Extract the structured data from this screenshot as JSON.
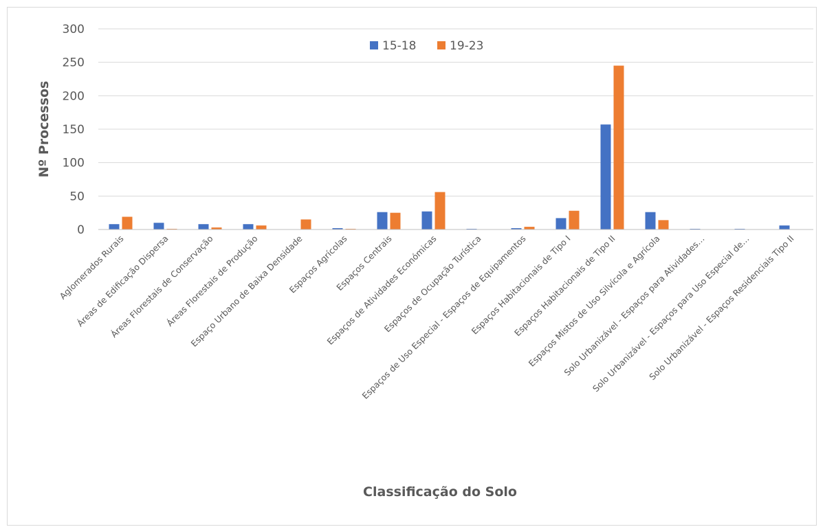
{
  "chart_data": {
    "type": "bar",
    "title": "",
    "xlabel": "Classificação do Solo",
    "ylabel": "Nº Processos",
    "ylim": [
      0,
      300
    ],
    "yticks": [
      0,
      50,
      100,
      150,
      200,
      250,
      300
    ],
    "grid": true,
    "legend_position": "top-center",
    "categories": [
      "Aglomerados Rurais",
      "Áreas de Edificação Dispersa",
      "Áreas Florestais de Conservação",
      "Áreas Florestais de Produção",
      "Espaço Urbano de Baixa Densidade",
      "Espaços Agrícolas",
      "Espaços Centrais",
      "Espaços de Atividades Económicas",
      "Espaços de Ocupação Turística",
      "Espaços de Uso Especial - Espaços de Equipamentos",
      "Espaços Habitacionais de Tipo I",
      "Espaços Habitacionais de Tipo II",
      "Espaços Mistos de Uso Silvícola e Agrícola",
      "Solo Urbanizável - Espaços para Atividades…",
      "Solo Urbanizável - Espaços para Uso Especial de…",
      "Solo Urbanizável - Espaços Residenciais Tipo II"
    ],
    "series": [
      {
        "name": "15-18",
        "color": "#4472c4",
        "values": [
          8,
          10,
          8,
          8,
          0,
          2,
          26,
          27,
          1,
          2,
          17,
          157,
          26,
          1,
          1,
          6
        ]
      },
      {
        "name": "19-23",
        "color": "#ed7d31",
        "values": [
          19,
          1,
          3,
          6,
          15,
          1,
          25,
          56,
          0,
          4,
          28,
          245,
          14,
          0,
          0,
          0
        ]
      }
    ]
  }
}
